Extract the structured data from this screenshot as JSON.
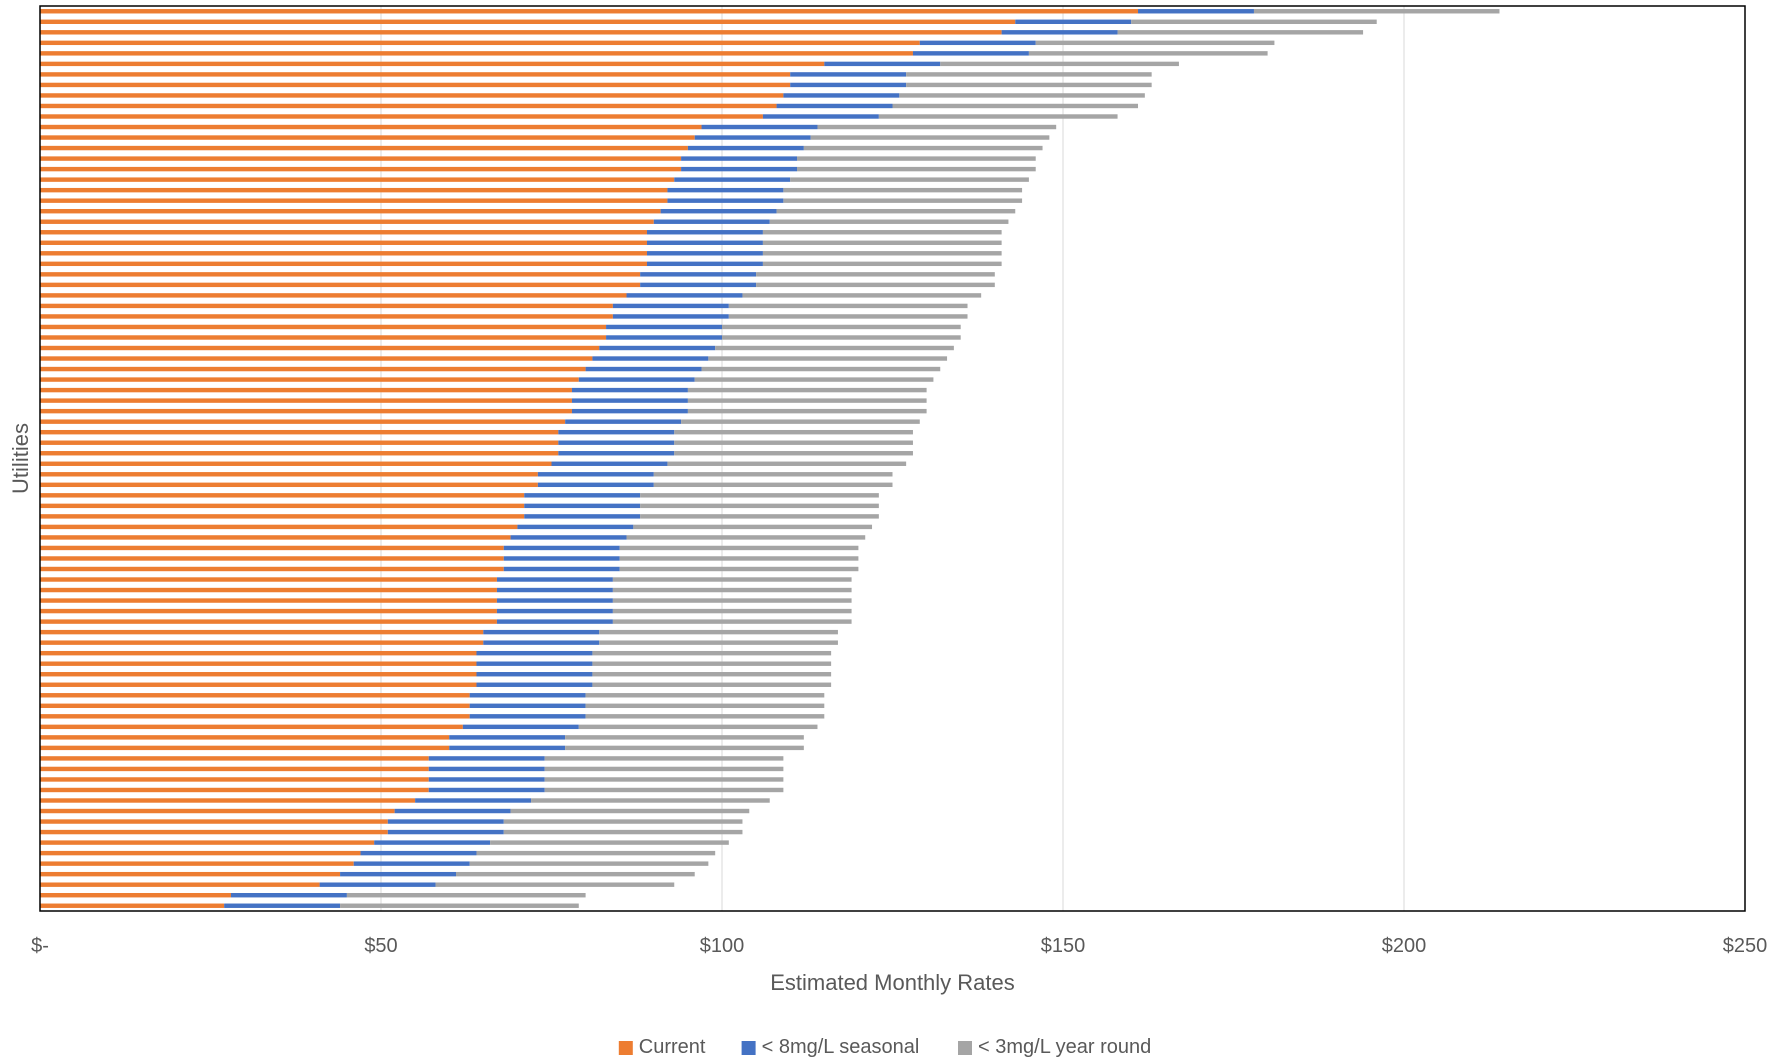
{
  "chart_data": {
    "type": "bar",
    "orientation": "horizontal",
    "stacked": true,
    "title": "",
    "xlabel": "Estimated Monthly Rates",
    "ylabel": "Utilities",
    "xlim": [
      0,
      250
    ],
    "x_ticks": [
      0,
      50,
      100,
      150,
      200,
      250
    ],
    "x_tick_labels": [
      "$-",
      "$50",
      "$100",
      "$150",
      "$200",
      "$250"
    ],
    "grid": "vertical",
    "legend": "bottom",
    "colors": {
      "current": "#ED7D31",
      "seasonal": "#4472C4",
      "year_round": "#A5A5A5",
      "grid": "#D9D9D9",
      "axis": "#000000"
    },
    "series": [
      {
        "name": "Current",
        "color": "#ED7D31",
        "values": [
          161,
          143,
          141,
          129,
          128,
          115,
          110,
          110,
          109,
          108,
          106,
          97,
          96,
          95,
          94,
          94,
          93,
          92,
          92,
          91,
          90,
          89,
          89,
          89,
          89,
          88,
          88,
          86,
          84,
          84,
          83,
          83,
          82,
          81,
          80,
          79,
          78,
          78,
          78,
          77,
          76,
          76,
          76,
          75,
          73,
          73,
          71,
          71,
          71,
          70,
          69,
          68,
          68,
          68,
          67,
          67,
          67,
          67,
          67,
          65,
          65,
          64,
          64,
          64,
          64,
          63,
          63,
          63,
          62,
          60,
          60,
          57,
          57,
          57,
          57,
          55,
          52,
          51,
          51,
          49,
          47,
          46,
          44,
          41,
          28,
          27
        ]
      },
      {
        "name": "< 8mg/L seasonal",
        "color": "#4472C4",
        "values": [
          17,
          17,
          17,
          17,
          17,
          17,
          17,
          17,
          17,
          17,
          17,
          17,
          17,
          17,
          17,
          17,
          17,
          17,
          17,
          17,
          17,
          17,
          17,
          17,
          17,
          17,
          17,
          17,
          17,
          17,
          17,
          17,
          17,
          17,
          17,
          17,
          17,
          17,
          17,
          17,
          17,
          17,
          17,
          17,
          17,
          17,
          17,
          17,
          17,
          17,
          17,
          17,
          17,
          17,
          17,
          17,
          17,
          17,
          17,
          17,
          17,
          17,
          17,
          17,
          17,
          17,
          17,
          17,
          17,
          17,
          17,
          17,
          17,
          17,
          17,
          17,
          17,
          17,
          17,
          17,
          17,
          17,
          17,
          17,
          17,
          17
        ]
      },
      {
        "name": "< 3mg/L year round",
        "color": "#A5A5A5",
        "values": [
          36,
          36,
          36,
          35,
          35,
          35,
          36,
          36,
          36,
          36,
          35,
          35,
          35,
          35,
          35,
          35,
          35,
          35,
          35,
          35,
          35,
          35,
          35,
          35,
          35,
          35,
          35,
          35,
          35,
          35,
          35,
          35,
          35,
          35,
          35,
          35,
          35,
          35,
          35,
          35,
          35,
          35,
          35,
          35,
          35,
          35,
          35,
          35,
          35,
          35,
          35,
          35,
          35,
          35,
          35,
          35,
          35,
          35,
          35,
          35,
          35,
          35,
          35,
          35,
          35,
          35,
          35,
          35,
          35,
          35,
          35,
          35,
          35,
          35,
          35,
          35,
          35,
          35,
          35,
          35,
          35,
          35,
          35,
          35,
          35,
          35
        ]
      }
    ]
  }
}
